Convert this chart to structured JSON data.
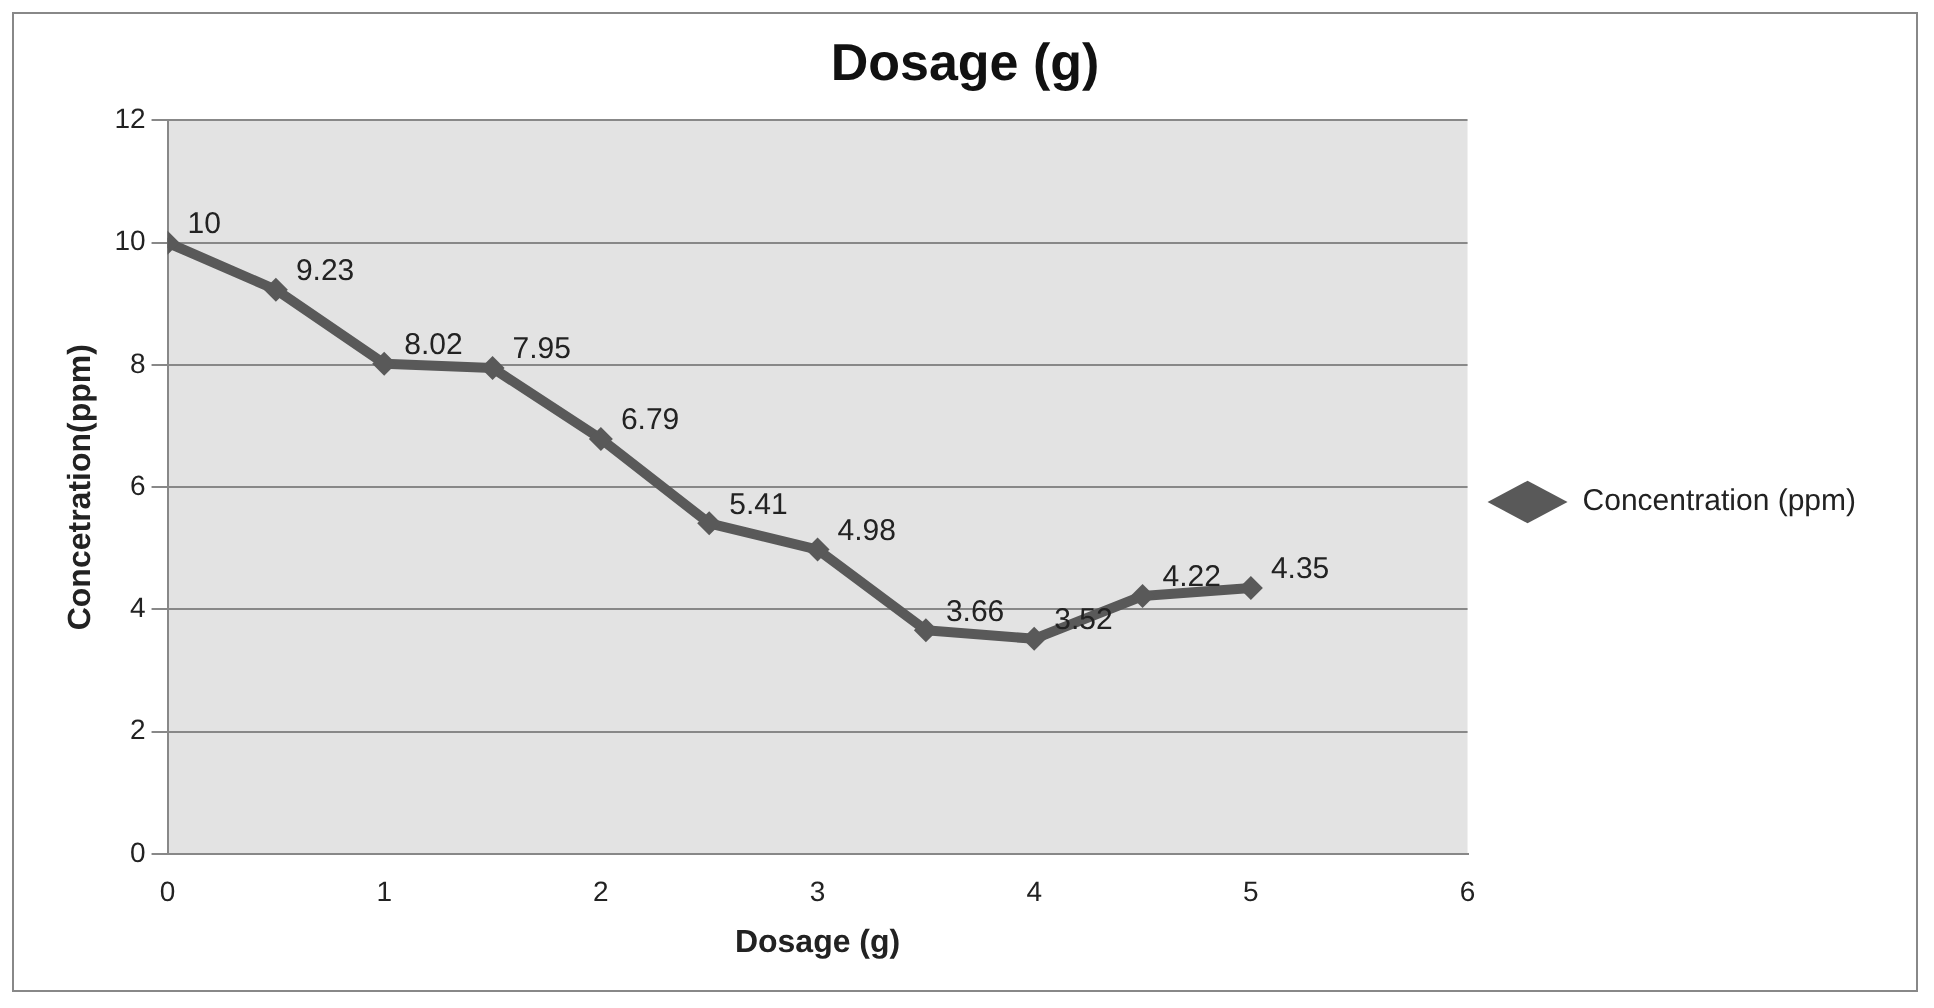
{
  "chart_data": {
    "type": "line",
    "title": "Dosage (g)",
    "xlabel": "Dosage (g)",
    "ylabel": "Concetration(ppm)",
    "x": [
      0,
      0.5,
      1,
      1.5,
      2,
      2.5,
      3,
      3.5,
      4,
      4.5,
      5
    ],
    "series": [
      {
        "name": "Concentration (ppm)",
        "color": "#595959",
        "values": [
          10,
          9.23,
          8.02,
          7.95,
          6.79,
          5.41,
          4.98,
          3.66,
          3.52,
          4.22,
          4.35
        ]
      }
    ],
    "xlim": [
      0,
      6
    ],
    "xticks": [
      0,
      1,
      2,
      3,
      4,
      5,
      6
    ],
    "ylim": [
      0,
      12
    ],
    "yticks": [
      0,
      2,
      4,
      6,
      8,
      10,
      12
    ],
    "grid": "y",
    "legend": "right",
    "marker": "diamond",
    "line_style": "solid",
    "data_labels": true
  }
}
